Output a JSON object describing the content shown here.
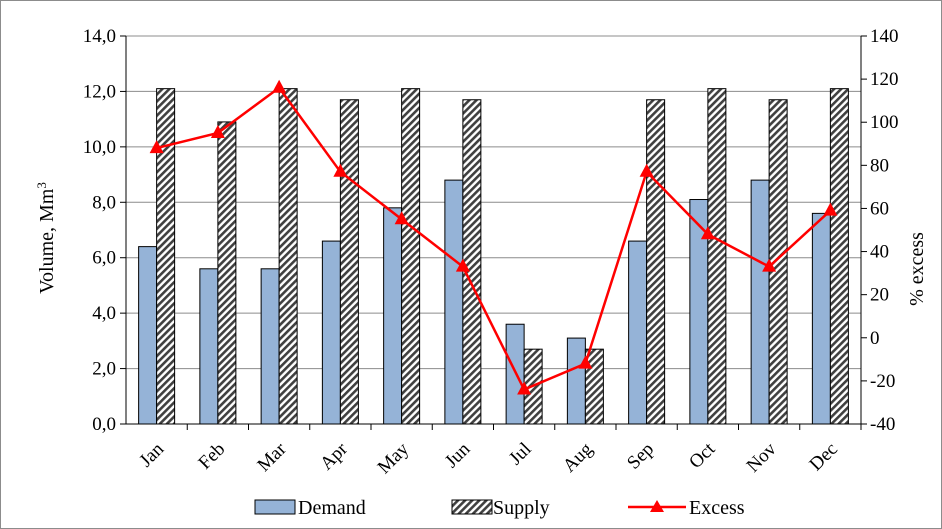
{
  "chart_data": {
    "type": "bar",
    "categories": [
      "Jan",
      "Feb",
      "Mar",
      "Apr",
      "May",
      "Jun",
      "Jul",
      "Aug",
      "Sep",
      "Oct",
      "Nov",
      "Dec"
    ],
    "series": [
      {
        "name": "Demand",
        "type": "bar",
        "axis": "left",
        "color": "#95b3d7",
        "values": [
          6.4,
          5.6,
          5.6,
          6.6,
          7.8,
          8.8,
          3.6,
          3.1,
          6.6,
          8.1,
          8.8,
          7.6
        ]
      },
      {
        "name": "Supply",
        "type": "bar",
        "axis": "left",
        "pattern": "diagonal-hatch",
        "color": "#404040",
        "values": [
          12.1,
          10.9,
          12.1,
          11.7,
          12.1,
          11.7,
          2.7,
          2.7,
          11.7,
          12.1,
          11.7,
          12.1
        ]
      },
      {
        "name": "Excess",
        "type": "line",
        "axis": "right",
        "marker": "triangle",
        "color": "#ff0000",
        "values": [
          88,
          95,
          116,
          77,
          55,
          33,
          -24,
          -12,
          77,
          48,
          33,
          59
        ]
      }
    ],
    "ylabel": "Volume, Mm³",
    "ylabel_base": "Volume, Mm",
    "ylabel_sup": "3",
    "y2label": "% excess",
    "ylim": [
      0,
      14
    ],
    "y2lim": [
      -40,
      140
    ],
    "y_ticks": [
      "0,0",
      "2,0",
      "4,0",
      "6,0",
      "8,0",
      "10,0",
      "12,0",
      "14,0"
    ],
    "y2_ticks": [
      "-40",
      "-20",
      "0",
      "20",
      "40",
      "60",
      "80",
      "100",
      "120",
      "140"
    ],
    "grid": "horizontal-major",
    "legend_position": "bottom"
  }
}
